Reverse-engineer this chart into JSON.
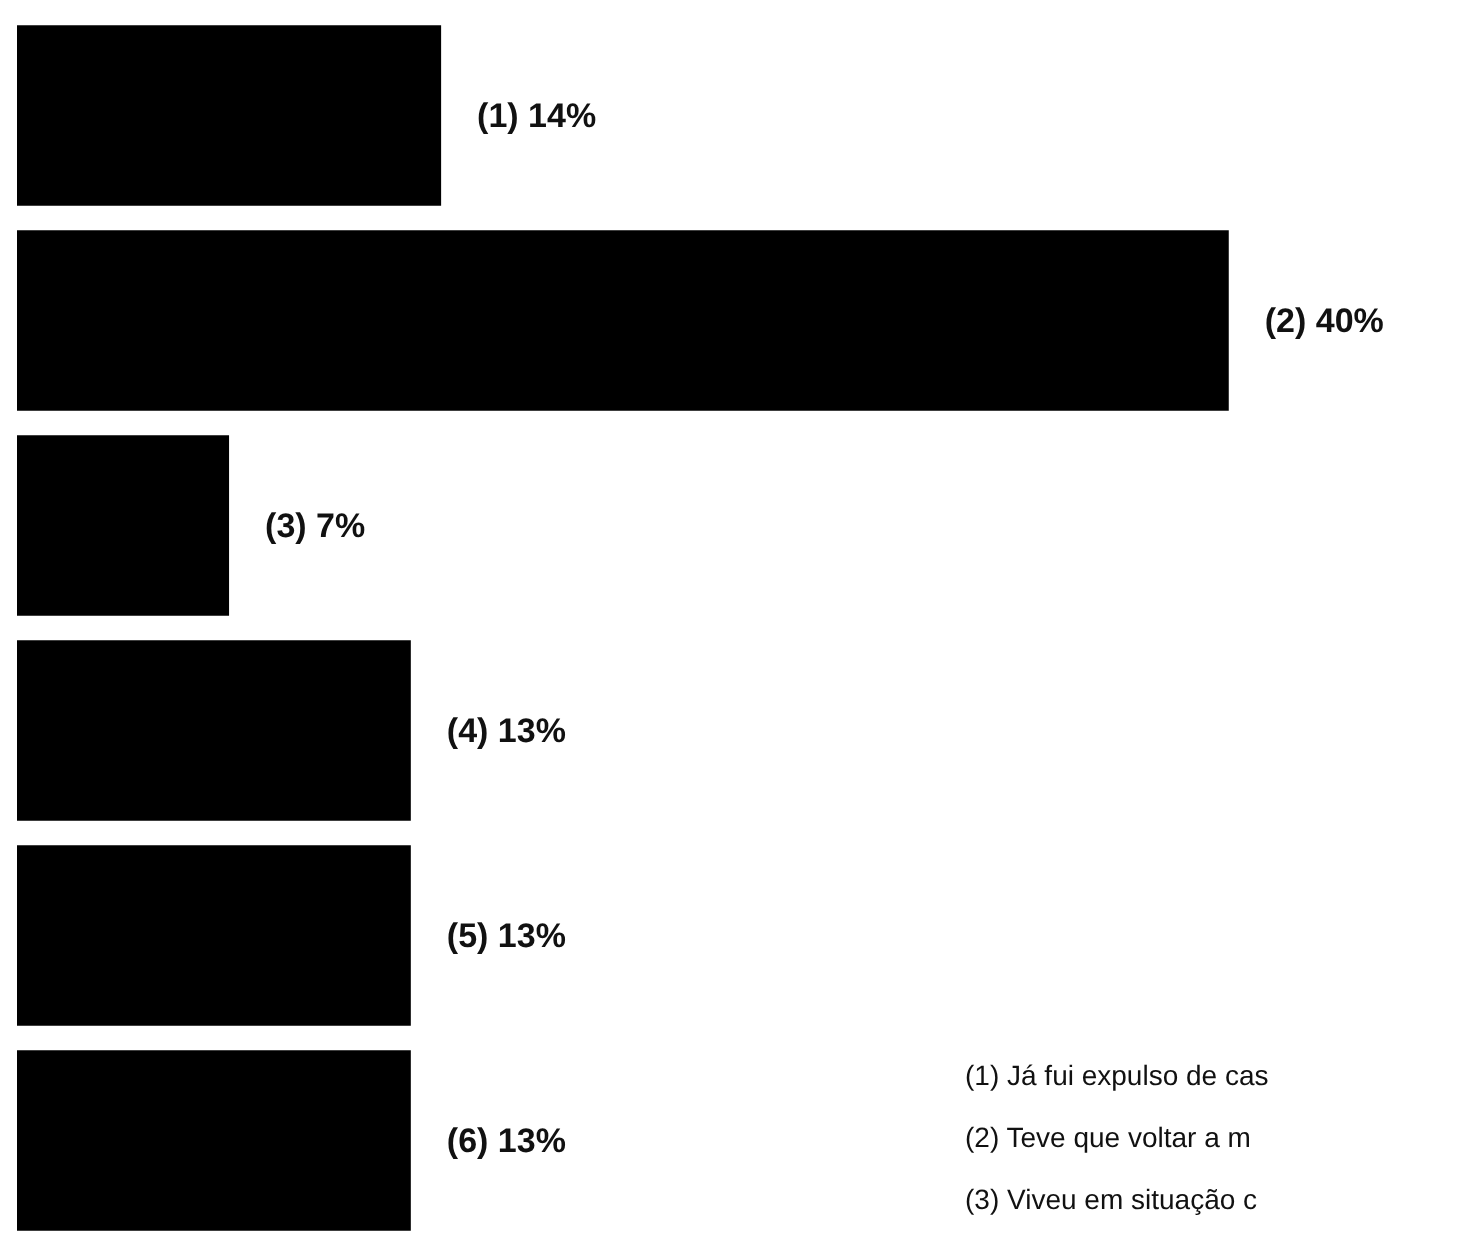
{
  "chart_data": {
    "type": "bar",
    "orientation": "horizontal",
    "categories": [
      null,
      null,
      null,
      null,
      null,
      null
    ],
    "values": [
      14,
      40,
      7,
      13,
      13,
      13
    ],
    "color": "#000000",
    "value_labels": [
      "(1) 14%",
      "(2) 40%",
      "(3) 7%",
      "(4) 13%",
      "(5) 13%",
      "(6) 13%"
    ],
    "annotations": [
      "(1) Já fui expulso de cas",
      "(2) Teve que voltar a m",
      "(3) Viveu em situação c"
    ]
  }
}
